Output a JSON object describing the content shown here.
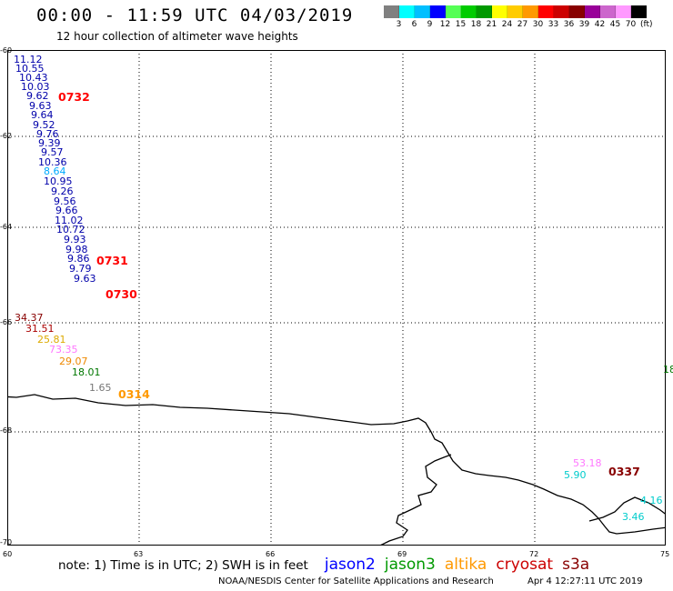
{
  "header": {
    "title": "00:00 - 11:59 UTC 04/03/2019",
    "subtitle": "12 hour collection of altimeter wave heights"
  },
  "legend": {
    "colors": [
      "#808080",
      "#00ffff",
      "#00bfff",
      "#0000ff",
      "#55ff55",
      "#00cc00",
      "#009900",
      "#ffff00",
      "#ffcc00",
      "#ff9900",
      "#ff0000",
      "#cc0000",
      "#880000",
      "#990099",
      "#cc66cc",
      "#ff99ff",
      "#000000"
    ],
    "labels": [
      "3",
      "6",
      "9",
      "12",
      "15",
      "18",
      "21",
      "24",
      "27",
      "30",
      "33",
      "36",
      "39",
      "42",
      "45",
      "70"
    ],
    "unit": "(ft)"
  },
  "map": {
    "y_ticks": [
      "-60",
      "-62",
      "-64",
      "-66",
      "-68",
      "-70"
    ],
    "x_ticks": [
      "60",
      "63",
      "66",
      "69",
      "72",
      "75"
    ],
    "wave_heights": [
      {
        "text": "11.12",
        "color": "#0000aa"
      },
      {
        "text": "10.55",
        "color": "#0000aa"
      },
      {
        "text": "10.43",
        "color": "#0000aa"
      },
      {
        "text": "10.03",
        "color": "#0000aa"
      },
      {
        "text": "9.62",
        "color": "#0000aa"
      },
      {
        "text": "9.63",
        "color": "#0000aa"
      },
      {
        "text": "9.64",
        "color": "#0000aa"
      },
      {
        "text": "9.52",
        "color": "#0000aa"
      },
      {
        "text": "9.76",
        "color": "#0000aa"
      },
      {
        "text": "9.39",
        "color": "#0000aa"
      },
      {
        "text": "9.57",
        "color": "#0000aa"
      },
      {
        "text": "10.36",
        "color": "#0000aa"
      },
      {
        "text": "8.64",
        "color": "#00aaff"
      },
      {
        "text": "10.95",
        "color": "#0000aa"
      },
      {
        "text": "9.26",
        "color": "#0000aa"
      },
      {
        "text": "9.56",
        "color": "#0000aa"
      },
      {
        "text": "9.66",
        "color": "#0000aa"
      },
      {
        "text": "11.02",
        "color": "#0000aa"
      },
      {
        "text": "10.72",
        "color": "#0000aa"
      },
      {
        "text": "9.93",
        "color": "#0000aa"
      },
      {
        "text": "9.98",
        "color": "#0000aa"
      },
      {
        "text": "9.86",
        "color": "#0000aa"
      },
      {
        "text": "9.79",
        "color": "#0000aa"
      },
      {
        "text": "9.63",
        "color": "#0000aa"
      },
      {
        "text": "34.37",
        "color": "#880000"
      },
      {
        "text": "31.51",
        "color": "#aa0000"
      },
      {
        "text": "25.81",
        "color": "#ddaa00"
      },
      {
        "text": "73.35",
        "color": "#ff77ff"
      },
      {
        "text": "29.07",
        "color": "#ee8800"
      },
      {
        "text": "18.01",
        "color": "#007700"
      },
      {
        "text": "1.65",
        "color": "#777777"
      },
      {
        "text": "18",
        "color": "#007700"
      },
      {
        "text": "53.18",
        "color": "#ff77ff"
      },
      {
        "text": "5.90",
        "color": "#00cccc"
      },
      {
        "text": "4.16",
        "color": "#00cccc"
      },
      {
        "text": "3.46",
        "color": "#00cccc"
      }
    ],
    "pass_times": [
      {
        "text": "0732",
        "color": "#ff0000"
      },
      {
        "text": "0731",
        "color": "#ff0000"
      },
      {
        "text": "0730",
        "color": "#ff0000"
      },
      {
        "text": "0314",
        "color": "#ff9900"
      },
      {
        "text": "0337",
        "color": "#880000"
      }
    ]
  },
  "footer": {
    "note": "note: 1) Time is in UTC; 2) SWH is in feet",
    "satellites": [
      {
        "name": "jason2",
        "color": "#0000ff"
      },
      {
        "name": "jason3",
        "color": "#009900"
      },
      {
        "name": "altika",
        "color": "#ff9900"
      },
      {
        "name": "cryosat",
        "color": "#cc0000"
      },
      {
        "name": "s3a",
        "color": "#880000"
      }
    ],
    "credit": "NOAA/NESDIS Center for Satellite Applications and Research",
    "timestamp": "Apr  4 12:27:11 UTC 2019"
  }
}
